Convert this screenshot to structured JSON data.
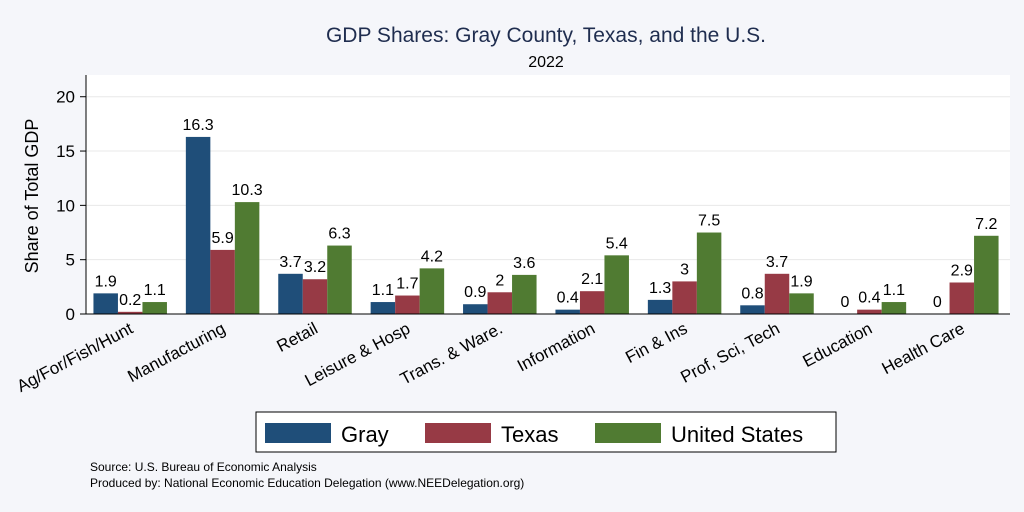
{
  "chart_data": {
    "type": "bar",
    "title": "GDP Shares: Gray County, Texas, and the U.S.",
    "subtitle": "2022",
    "xlabel": "",
    "ylabel": "Share of Total GDP",
    "ylim": [
      0,
      22
    ],
    "yticks": [
      0,
      5,
      10,
      15,
      20
    ],
    "grid": true,
    "legend_position": "bottom",
    "categories": [
      "Ag/For/Fish/Hunt",
      "Manufacturing",
      "Retail",
      "Leisure & Hosp",
      "Trans. & Ware.",
      "Information",
      "Fin & Ins",
      "Prof, Sci, Tech",
      "Education",
      "Health Care"
    ],
    "series": [
      {
        "name": "Gray",
        "color": "#1f4e79",
        "values": [
          1.9,
          16.3,
          3.7,
          1.1,
          0.9,
          0.4,
          1.3,
          0.8,
          0.0,
          0.0
        ]
      },
      {
        "name": "Texas",
        "color": "#973a45",
        "values": [
          0.2,
          5.9,
          3.2,
          1.7,
          2.0,
          2.1,
          3.0,
          3.7,
          0.4,
          2.9
        ]
      },
      {
        "name": "United States",
        "color": "#507b32",
        "values": [
          1.1,
          10.3,
          6.3,
          4.2,
          3.6,
          5.4,
          7.5,
          1.9,
          1.1,
          7.2
        ]
      }
    ]
  },
  "notes": {
    "source": "Source: U.S. Bureau of Economic Analysis",
    "produced_by": "Produced by: National Economic Education Delegation (www.NEEDelegation.org)"
  }
}
